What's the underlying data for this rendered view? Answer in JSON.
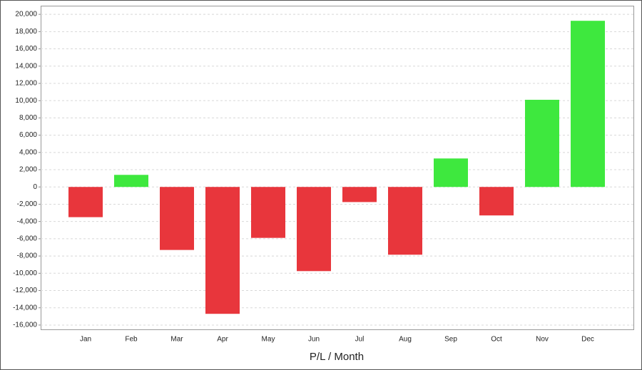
{
  "chart_data": {
    "type": "bar",
    "x_label": "P/L / Month",
    "categories": [
      "Jan",
      "Feb",
      "Mar",
      "Apr",
      "May",
      "Jun",
      "Jul",
      "Aug",
      "Sep",
      "Oct",
      "Nov",
      "Dec"
    ],
    "values": [
      -3500,
      1400,
      -7300,
      -14700,
      -5900,
      -9750,
      -1750,
      -7850,
      3300,
      -3300,
      10100,
      19250
    ],
    "color_positive": "#3ee83e",
    "color_negative": "#e8363c",
    "ylim": [
      -16500,
      21000
    ],
    "yticks": [
      {
        "value": -16000,
        "label": "-16,000"
      },
      {
        "value": -14000,
        "label": "-14,000"
      },
      {
        "value": -12000,
        "label": "-12,000"
      },
      {
        "value": -10000,
        "label": "-10,000"
      },
      {
        "value": -8000,
        "label": "-8,000"
      },
      {
        "value": -6000,
        "label": "-6,000"
      },
      {
        "value": -4000,
        "label": "-4,000"
      },
      {
        "value": -2000,
        "label": "-2,000"
      },
      0,
      {
        "value": 2000,
        "label": "2,000"
      },
      {
        "value": 4000,
        "label": "4,000"
      },
      {
        "value": 6000,
        "label": "6,000"
      },
      {
        "value": 8000,
        "label": "8,000"
      },
      {
        "value": 10000,
        "label": "10,000"
      },
      {
        "value": 12000,
        "label": "12,000"
      },
      {
        "value": 14000,
        "label": "14,000"
      },
      {
        "value": 16000,
        "label": "16,000"
      },
      {
        "value": 18000,
        "label": "18,000"
      },
      {
        "value": 20000,
        "label": "20,000"
      }
    ],
    "grid": true
  }
}
